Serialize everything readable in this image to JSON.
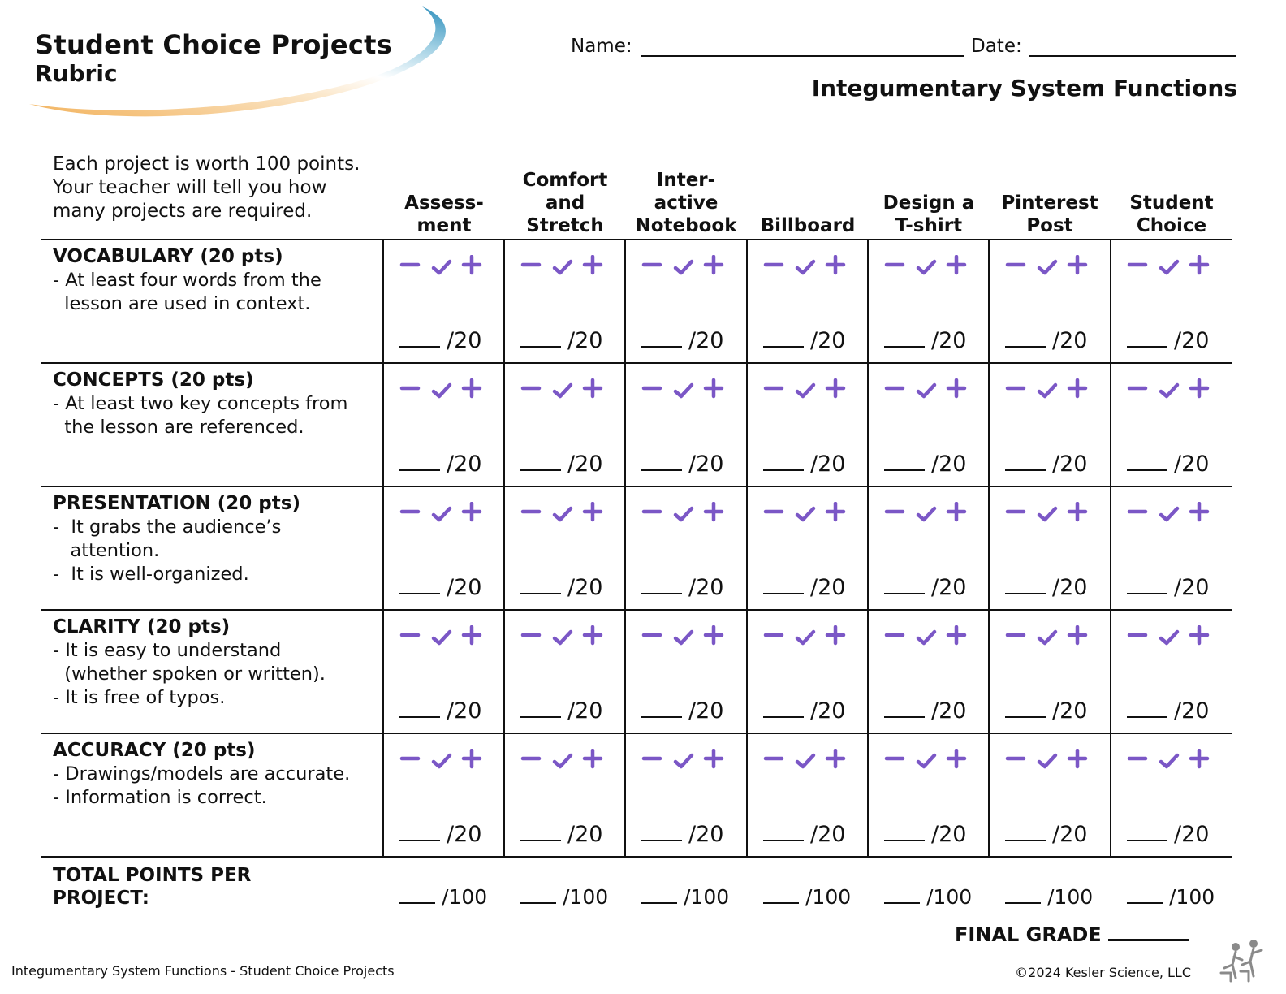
{
  "header": {
    "title": "Student Choice Projects",
    "subtitle": "Rubric",
    "name_label": "Name:",
    "date_label": "Date:",
    "topic": "Integumentary System Functions"
  },
  "intro": "Each project is worth 100 points. Your teacher will tell you how many projects are required.",
  "columns": [
    {
      "line1": "Assess-",
      "line2": "ment"
    },
    {
      "line0": "Comfort",
      "line1": "and",
      "line2": "Stretch"
    },
    {
      "line0": "Inter-",
      "line1": "active",
      "line2": "Notebook"
    },
    {
      "line2": "Billboard"
    },
    {
      "line1": "Design a",
      "line2": "T-shirt"
    },
    {
      "line1": "Pinterest",
      "line2": "Post"
    },
    {
      "line1": "Student",
      "line2": "Choice"
    }
  ],
  "criteria": [
    {
      "title": "VOCABULARY (20 pts)",
      "bullets": [
        "- At least four words from the",
        "  lesson are used in context."
      ]
    },
    {
      "title": "CONCEPTS (20 pts)",
      "bullets": [
        "- At least two key concepts from",
        "  the lesson are referenced."
      ]
    },
    {
      "title": "PRESENTATION (20 pts)",
      "bullets": [
        "-  It grabs the audience’s",
        "   attention.",
        "-  It is well-organized."
      ]
    },
    {
      "title": "CLARITY (20 pts)",
      "bullets": [
        "- It is easy to understand",
        "  (whether spoken or written).",
        "- It is free of typos."
      ]
    },
    {
      "title": "ACCURACY (20 pts)",
      "bullets": [
        "- Drawings/models are accurate.",
        "- Information is correct."
      ]
    }
  ],
  "cell_score": "/20",
  "total_label_1": "TOTAL POINTS PER",
  "total_label_2": "PROJECT:",
  "total_score": "/100",
  "final_grade": "FINAL GRADE",
  "footer_left": "Integumentary System Functions - Student Choice Projects",
  "footer_right": "©2024  Kesler Science, LLC",
  "colors": {
    "mark": "#7b57c6",
    "swoosh_blue": "#3d9ac2",
    "swoosh_orange": "#f2b25c"
  },
  "icons": {
    "minus": "minus-icon",
    "check": "check-icon",
    "plus": "plus-icon",
    "logo": "kesler-logo"
  }
}
